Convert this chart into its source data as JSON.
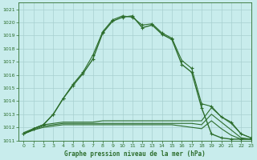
{
  "title": "Graphe pression niveau de la mer (hPa)",
  "xlim": [
    -0.5,
    23
  ],
  "ylim": [
    1011,
    1021.5
  ],
  "yticks": [
    1011,
    1012,
    1013,
    1014,
    1015,
    1016,
    1017,
    1018,
    1019,
    1020,
    1021
  ],
  "xticks": [
    0,
    1,
    2,
    3,
    4,
    5,
    6,
    7,
    8,
    9,
    10,
    11,
    12,
    13,
    14,
    15,
    16,
    17,
    18,
    19,
    20,
    21,
    22,
    23
  ],
  "bg_color": "#c8ecec",
  "grid_color": "#a8d0d0",
  "line_color": "#2d6e2d",
  "main_line": {
    "x": [
      0,
      1,
      2,
      3,
      4,
      5,
      6,
      7,
      8,
      9,
      10,
      11,
      12,
      13,
      14,
      15,
      16,
      17,
      18,
      19,
      20,
      21,
      22,
      23
    ],
    "y": [
      1011.5,
      1011.9,
      1012.2,
      1013.0,
      1014.2,
      1015.2,
      1016.1,
      1017.2,
      1019.2,
      1020.1,
      1020.4,
      1020.5,
      1019.6,
      1019.8,
      1019.1,
      1018.7,
      1016.8,
      1016.2,
      1013.5,
      1011.5,
      1011.2,
      1011.1,
      1011.1,
      1011.1
    ]
  },
  "line2": {
    "x": [
      0,
      1,
      2,
      3,
      4,
      5,
      6,
      7,
      8,
      9,
      10,
      11,
      12,
      13,
      14,
      15,
      16,
      17,
      18,
      19,
      20,
      21,
      22,
      23
    ],
    "y": [
      1011.5,
      1011.9,
      1012.2,
      1013.0,
      1014.2,
      1015.3,
      1016.2,
      1017.5,
      1019.3,
      1020.2,
      1020.5,
      1020.4,
      1019.8,
      1019.9,
      1019.2,
      1018.8,
      1017.1,
      1016.5,
      1013.8,
      1013.6,
      1012.8,
      1012.4,
      1011.5,
      1011.2
    ]
  },
  "line3": {
    "x": [
      0,
      1,
      2,
      3,
      4,
      5,
      6,
      7,
      8,
      9,
      10,
      11,
      12,
      13,
      14,
      15,
      16,
      17,
      18,
      19,
      20,
      21,
      22,
      23
    ],
    "y": [
      1011.6,
      1011.9,
      1012.2,
      1012.3,
      1012.4,
      1012.4,
      1012.4,
      1012.4,
      1012.5,
      1012.5,
      1012.5,
      1012.5,
      1012.5,
      1012.5,
      1012.5,
      1012.5,
      1012.5,
      1012.5,
      1012.5,
      1013.5,
      1012.8,
      1012.3,
      1011.5,
      1011.2
    ]
  },
  "line4": {
    "x": [
      0,
      1,
      2,
      3,
      4,
      5,
      6,
      7,
      8,
      9,
      10,
      11,
      12,
      13,
      14,
      15,
      16,
      17,
      18,
      19,
      20,
      21,
      22,
      23
    ],
    "y": [
      1011.5,
      1011.8,
      1012.1,
      1012.2,
      1012.3,
      1012.3,
      1012.3,
      1012.3,
      1012.3,
      1012.3,
      1012.3,
      1012.3,
      1012.3,
      1012.3,
      1012.3,
      1012.3,
      1012.3,
      1012.3,
      1012.2,
      1013.0,
      1012.4,
      1011.8,
      1011.2,
      1011.1
    ]
  },
  "line5": {
    "x": [
      0,
      1,
      2,
      3,
      4,
      5,
      6,
      7,
      8,
      9,
      10,
      11,
      12,
      13,
      14,
      15,
      16,
      17,
      18,
      19,
      20,
      21,
      22,
      23
    ],
    "y": [
      1011.5,
      1011.8,
      1012.0,
      1012.1,
      1012.2,
      1012.2,
      1012.2,
      1012.2,
      1012.2,
      1012.2,
      1012.2,
      1012.2,
      1012.2,
      1012.2,
      1012.2,
      1012.2,
      1012.1,
      1012.0,
      1011.9,
      1012.5,
      1011.9,
      1011.4,
      1011.1,
      1011.1
    ]
  }
}
